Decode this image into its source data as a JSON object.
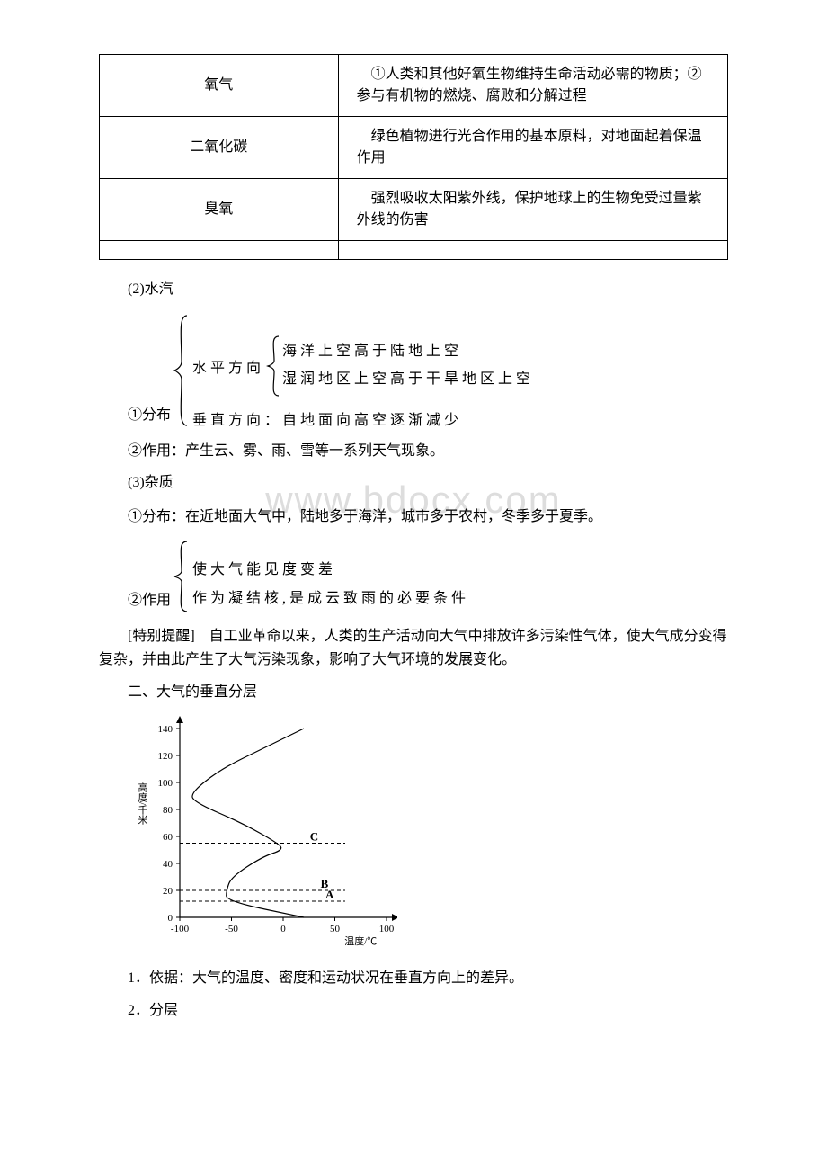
{
  "table": {
    "rows": [
      {
        "left": "氧气",
        "right": "　①人类和其他好氧生物维持生命活动必需的物质；②参与有机物的燃烧、腐败和分解过程"
      },
      {
        "left": "二氧化碳",
        "right": "　绿色植物进行光合作用的基本原料，对地面起着保温作用"
      },
      {
        "left": "臭氧",
        "right": "　强烈吸收太阳紫外线，保护地球上的生物免受过量紫外线的伤害"
      },
      {
        "left": "",
        "right": ""
      }
    ]
  },
  "s2_heading": "(2)水汽",
  "dist1": {
    "label": "①分布",
    "h_label": "水平方向",
    "h_line1": "海洋上空高于陆地上空",
    "h_line2": "湿润地区上空高于干旱地区上空",
    "v_line": "垂直方向：自地面向高空逐渐减少"
  },
  "s2_effect": "②作用：产生云、雾、雨、雪等一系列天气现象。",
  "s3_heading": "(3)杂质",
  "watermark": "www.bdocx.com",
  "s3_dist": "①分布：在近地面大气中，陆地多于海洋，城市多于农村，冬季多于夏季。",
  "dist2": {
    "label": "②作用",
    "line1": "使大气能见度变差",
    "line2": "作为凝结核,是成云致雨的必要条件"
  },
  "note": "[特别提醒]　自工业革命以来，人类的生产活动向大气中排放许多污染性气体，使大气成分变得复杂，并由此产生了大气污染现象，影响了大气环境的发展变化。",
  "sec2_title": "二、大气的垂直分层",
  "chart": {
    "y_label": "高度/千米",
    "x_label": "温度/℃",
    "y_unit_top": "千米",
    "y_ticks": [
      0,
      20,
      40,
      60,
      80,
      100,
      120,
      140
    ],
    "x_ticks": [
      -100,
      -50,
      0,
      50,
      100
    ],
    "letters": {
      "A": "A",
      "B": "B",
      "C": "C"
    },
    "layer_y": {
      "A": 12,
      "B": 20,
      "C": 55
    },
    "curve_desc": "temperature profile curve",
    "colors": {
      "axis": "#000000",
      "curve": "#000000",
      "dash": "#000000",
      "text": "#000000",
      "bg": "#ffffff"
    },
    "ylim": [
      0,
      140
    ],
    "xlim": [
      -100,
      100
    ],
    "fontsize_axis": 11,
    "fontsize_letter": 13,
    "line_width": 1.2
  },
  "p1": "1．依据：大气的温度、密度和运动状况在垂直方向上的差异。",
  "p2": "2．分层"
}
